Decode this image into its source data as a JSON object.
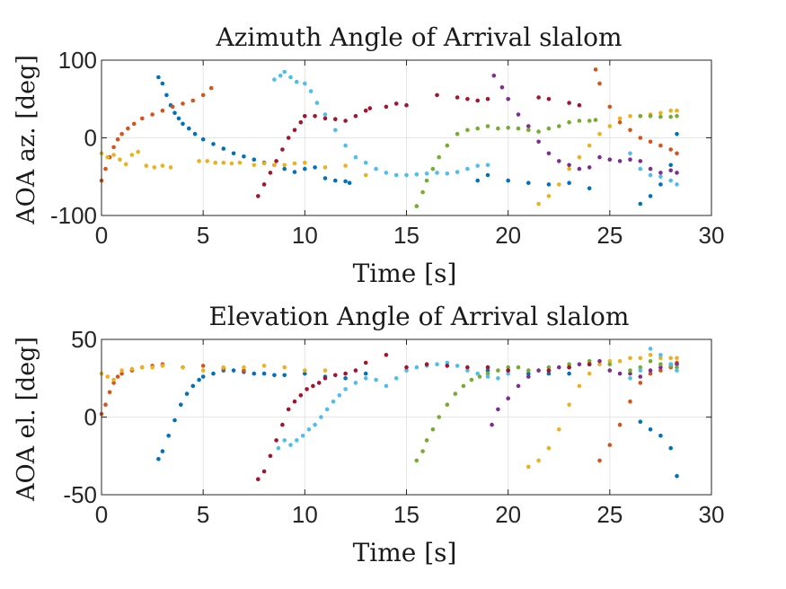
{
  "chart_data": [
    {
      "type": "scatter",
      "title": "Azimuth Angle of Arrival slalom",
      "xlabel": "Time [s]",
      "ylabel": "AOA az. [deg]",
      "xlim": [
        0,
        30
      ],
      "ylim": [
        -100,
        100
      ],
      "xticks": [
        0,
        5,
        10,
        15,
        20,
        25,
        30
      ],
      "yticks": [
        -100,
        0,
        100
      ],
      "ytick_labels": [
        "-100",
        "0",
        "100"
      ],
      "grid": true,
      "series": [
        {
          "color": "#0072BD",
          "x": [
            2.8,
            3.0,
            3.2,
            3.4,
            3.6,
            3.8,
            4.0,
            4.3,
            4.6,
            5.0,
            5.5,
            6.0,
            6.5,
            7.0,
            7.5,
            8.0,
            8.5,
            9.0,
            9.5,
            10.0,
            10.5,
            11.0,
            11.5,
            12.0,
            12.2,
            18.5,
            19.0,
            20.0,
            21.0,
            22.0,
            23.0,
            24.0,
            26.5,
            27.0,
            27.5,
            28.0,
            28.3
          ],
          "y": [
            78,
            70,
            55,
            42,
            32,
            25,
            18,
            12,
            5,
            -2,
            -8,
            -14,
            -20,
            -24,
            -28,
            -32,
            -35,
            -40,
            -44,
            -40,
            -38,
            -52,
            -55,
            -56,
            -58,
            -55,
            -48,
            -55,
            -58,
            -60,
            -58,
            -65,
            -85,
            -75,
            -60,
            -35,
            5
          ]
        },
        {
          "color": "#D95319",
          "x": [
            0.0,
            0.2,
            0.4,
            0.6,
            0.8,
            1.0,
            1.3,
            1.6,
            2.0,
            2.5,
            3.0,
            3.5,
            4.0,
            4.5,
            5.0,
            5.4,
            24.3,
            24.5,
            25.0,
            25.5,
            26.0,
            26.5,
            27.0,
            27.5,
            28.0,
            28.3
          ],
          "y": [
            -55,
            -40,
            -25,
            -12,
            -2,
            5,
            12,
            18,
            25,
            30,
            35,
            40,
            44,
            48,
            55,
            64,
            88,
            70,
            40,
            20,
            10,
            0,
            -5,
            -10,
            -15,
            -20
          ]
        },
        {
          "color": "#EDB120",
          "x": [
            0.0,
            0.3,
            0.6,
            0.9,
            1.2,
            1.5,
            1.8,
            2.2,
            2.6,
            3.0,
            3.4,
            4.8,
            5.2,
            5.6,
            6.0,
            6.4,
            6.8,
            7.5,
            8.0,
            8.5,
            9.0,
            9.5,
            10.0,
            11.0,
            12.0,
            13.0,
            21.5,
            22.0,
            22.5,
            23.0,
            23.5,
            24.0,
            24.5,
            25.0,
            25.5,
            26.0,
            26.5,
            27.0,
            27.5,
            28.0,
            28.3
          ],
          "y": [
            -20,
            -25,
            -22,
            -28,
            -34,
            -22,
            -18,
            -36,
            -38,
            -36,
            -38,
            -30,
            -30,
            -32,
            -32,
            -33,
            -32,
            -35,
            -33,
            -35,
            -35,
            -33,
            -32,
            -38,
            -36,
            -48,
            -85,
            -75,
            -60,
            -40,
            -25,
            -10,
            5,
            15,
            25,
            28,
            28,
            30,
            32,
            35,
            35
          ]
        },
        {
          "color": "#7E2F8E",
          "x": [
            19.3,
            19.7,
            20.0,
            20.5,
            21.0,
            21.5,
            22.0,
            22.5,
            23.0,
            23.5,
            24.0,
            24.5,
            25.0,
            25.5,
            26.0,
            26.5,
            27.0,
            27.5,
            28.0,
            28.3
          ],
          "y": [
            80,
            65,
            50,
            30,
            15,
            -5,
            -20,
            -30,
            -35,
            -40,
            -38,
            -25,
            -28,
            -30,
            -28,
            -30,
            -40,
            -45,
            -42,
            -45
          ]
        },
        {
          "color": "#77AC30",
          "x": [
            15.5,
            15.8,
            16.0,
            16.3,
            16.6,
            17.0,
            17.5,
            18.0,
            18.5,
            19.0,
            19.5,
            20.0,
            20.5,
            21.0,
            21.5,
            22.0,
            22.5,
            23.0,
            23.5,
            24.0,
            24.3,
            26.5,
            27.0,
            27.5,
            28.0,
            28.3
          ],
          "y": [
            -88,
            -70,
            -55,
            -40,
            -25,
            -10,
            5,
            10,
            12,
            15,
            12,
            13,
            12,
            10,
            8,
            12,
            15,
            20,
            22,
            22,
            23,
            28,
            28,
            27,
            27,
            28
          ]
        },
        {
          "color": "#4DBEEE",
          "x": [
            8.5,
            8.8,
            9.0,
            9.3,
            9.6,
            10.0,
            10.3,
            10.6,
            11.0,
            11.5,
            12.0,
            12.5,
            13.0,
            13.5,
            14.0,
            14.5,
            15.0,
            15.5,
            16.0,
            16.5,
            17.0,
            17.5,
            18.0,
            18.5,
            19.0,
            26.0,
            26.5,
            27.0,
            27.5,
            28.0,
            28.3
          ],
          "y": [
            75,
            80,
            85,
            78,
            72,
            70,
            60,
            45,
            30,
            10,
            -10,
            -25,
            -32,
            -40,
            -45,
            -48,
            -48,
            -47,
            -46,
            -45,
            -46,
            -44,
            -40,
            -36,
            -35,
            -20,
            -40,
            -48,
            -50,
            -55,
            -60
          ]
        },
        {
          "color": "#A2142F",
          "x": [
            7.7,
            8.0,
            8.3,
            8.6,
            8.9,
            9.2,
            9.5,
            9.8,
            10.0,
            10.5,
            11.0,
            11.5,
            12.0,
            12.5,
            13.0,
            13.2,
            14.0,
            14.5,
            15.0,
            16.5,
            17.5,
            18.0,
            18.5,
            19.0,
            21.5,
            22.0,
            23.0,
            23.5
          ],
          "y": [
            -75,
            -60,
            -45,
            -30,
            -15,
            0,
            10,
            20,
            28,
            28,
            25,
            24,
            22,
            28,
            35,
            38,
            40,
            44,
            42,
            55,
            52,
            50,
            48,
            50,
            52,
            50,
            45,
            42
          ]
        }
      ]
    },
    {
      "type": "scatter",
      "title": "Elevation Angle of Arrival slalom",
      "xlabel": "Time [s]",
      "ylabel": "AOA el. [deg]",
      "xlim": [
        0,
        30
      ],
      "ylim": [
        -50,
        50
      ],
      "xticks": [
        0,
        5,
        10,
        15,
        20,
        25,
        30
      ],
      "yticks": [
        -50,
        0,
        50
      ],
      "ytick_labels": [
        "-50",
        "0",
        "50"
      ],
      "grid": true,
      "series": [
        {
          "color": "#0072BD",
          "x": [
            2.8,
            3.0,
            3.3,
            3.6,
            3.9,
            4.2,
            4.5,
            4.8,
            5.0,
            5.5,
            6.0,
            6.5,
            7.0,
            7.5,
            8.0,
            8.5,
            9.0,
            10.0,
            11.0,
            12.0,
            13.0,
            19.0,
            20.0,
            21.0,
            22.0,
            23.0,
            26.5,
            27.0,
            27.5,
            28.0,
            28.3
          ],
          "y": [
            -27,
            -22,
            -12,
            -2,
            8,
            15,
            20,
            24,
            26,
            28,
            30,
            30,
            29,
            28,
            28,
            27,
            27,
            28,
            26,
            25,
            28,
            30,
            30,
            28,
            28,
            28,
            -3,
            -8,
            -12,
            -20,
            -38
          ]
        },
        {
          "color": "#D95319",
          "x": [
            0.0,
            0.2,
            0.4,
            0.6,
            0.8,
            1.0,
            1.5,
            2.0,
            2.5,
            3.0,
            4.0,
            5.0,
            6.0,
            7.0,
            24.5,
            25.0,
            25.5,
            26.0,
            26.5,
            27.0,
            27.5,
            28.0,
            28.3
          ],
          "y": [
            2,
            8,
            16,
            22,
            26,
            28,
            30,
            32,
            33,
            34,
            32,
            33,
            31,
            30,
            -28,
            -18,
            -5,
            10,
            22,
            28,
            30,
            32,
            35
          ]
        },
        {
          "color": "#EDB120",
          "x": [
            0.0,
            0.3,
            0.6,
            1.0,
            1.5,
            2.0,
            2.5,
            3.0,
            4.0,
            5.0,
            6.0,
            7.0,
            8.0,
            9.0,
            10.0,
            11.0,
            21.0,
            21.5,
            22.0,
            22.5,
            23.0,
            23.5,
            24.0,
            24.5,
            25.0,
            25.5,
            26.0,
            26.5,
            27.0,
            27.5,
            28.0,
            28.3
          ],
          "y": [
            28,
            26,
            24,
            30,
            31,
            32,
            32,
            33,
            32,
            30,
            32,
            32,
            33,
            32,
            30,
            30,
            -32,
            -28,
            -20,
            -8,
            8,
            20,
            28,
            34,
            36,
            36,
            38,
            38,
            40,
            38,
            38,
            38
          ]
        },
        {
          "color": "#7E2F8E",
          "x": [
            19.2,
            19.5,
            20.0,
            20.5,
            21.0,
            21.5,
            22.0,
            22.5,
            23.0,
            23.5,
            24.0,
            24.5,
            25.0,
            25.5,
            26.0,
            26.5,
            27.0,
            27.5,
            28.0,
            28.3
          ],
          "y": [
            -5,
            5,
            12,
            20,
            26,
            30,
            30,
            32,
            32,
            34,
            34,
            36,
            30,
            28,
            28,
            26,
            30,
            32,
            34,
            34
          ]
        },
        {
          "color": "#77AC30",
          "x": [
            15.5,
            15.8,
            16.0,
            16.3,
            16.6,
            17.0,
            17.4,
            17.8,
            18.2,
            18.6,
            19.0,
            19.5,
            20.0,
            20.5,
            21.0,
            22.0,
            23.0,
            24.0,
            25.0,
            26.0,
            26.5,
            27.0,
            27.5,
            28.0,
            28.3
          ],
          "y": [
            -28,
            -22,
            -15,
            -8,
            0,
            8,
            15,
            20,
            24,
            26,
            28,
            30,
            32,
            32,
            30,
            32,
            34,
            36,
            34,
            30,
            32,
            36,
            34,
            33,
            32
          ]
        },
        {
          "color": "#4DBEEE",
          "x": [
            8.7,
            9.0,
            9.3,
            9.6,
            9.9,
            10.2,
            10.5,
            10.8,
            11.1,
            11.4,
            11.7,
            12.0,
            12.5,
            13.0,
            13.5,
            14.0,
            14.5,
            15.0,
            15.5,
            16.0,
            16.5,
            17.0,
            17.5,
            18.0,
            18.5,
            19.0,
            19.5,
            20.0,
            26.0,
            26.5,
            27.0,
            27.5,
            28.0,
            28.3
          ],
          "y": [
            -20,
            -15,
            -18,
            -15,
            -12,
            -8,
            -5,
            0,
            5,
            10,
            14,
            18,
            22,
            25,
            24,
            20,
            25,
            30,
            32,
            33,
            34,
            35,
            33,
            30,
            28,
            26,
            25,
            28,
            25,
            30,
            44,
            40,
            34,
            30
          ]
        },
        {
          "color": "#A2142F",
          "x": [
            7.7,
            8.0,
            8.3,
            8.6,
            8.9,
            9.2,
            9.5,
            9.8,
            10.1,
            10.4,
            10.7,
            11.0,
            11.5,
            12.0,
            12.5,
            13.0,
            14.0,
            15.0,
            16.0,
            17.0,
            18.0,
            19.0,
            20.0,
            22.0,
            23.0,
            24.0
          ],
          "y": [
            -40,
            -35,
            -25,
            -15,
            -5,
            5,
            10,
            14,
            18,
            20,
            22,
            25,
            27,
            28,
            30,
            35,
            40,
            32,
            34,
            33,
            32,
            32,
            30,
            30,
            32,
            34
          ]
        }
      ]
    }
  ]
}
